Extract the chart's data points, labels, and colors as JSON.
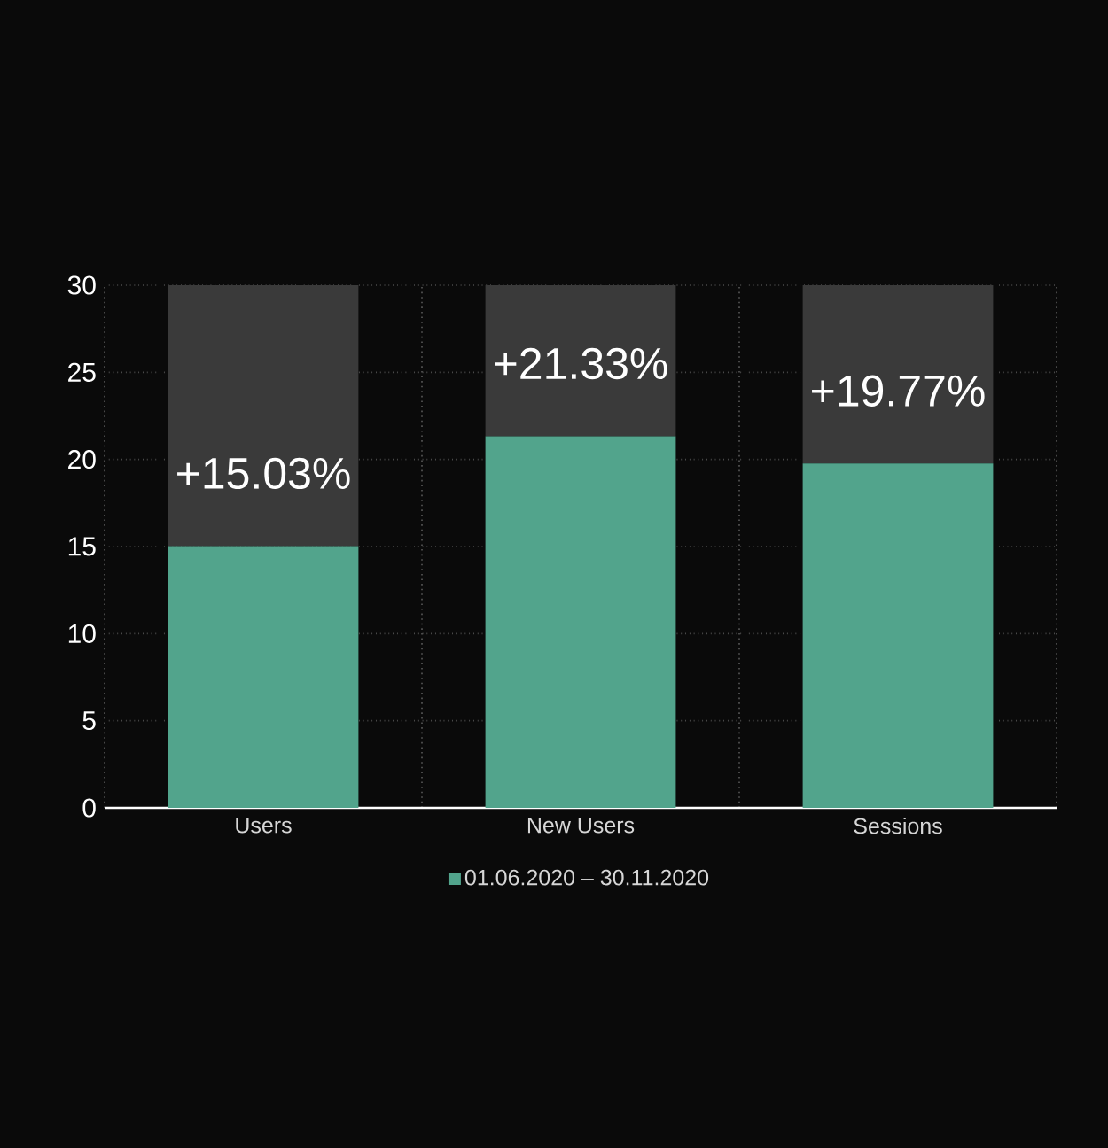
{
  "chart_data": {
    "type": "bar",
    "stacked": true,
    "categories": [
      "Users",
      "New Users",
      "Sessions"
    ],
    "series": [
      {
        "name": "01.06.2020 – 30.11.2020",
        "color": "#52a48c",
        "values": [
          15.03,
          21.33,
          19.77
        ],
        "value_labels": [
          "+15.03%",
          "+21.33%",
          "+19.77%"
        ]
      },
      {
        "color": "#3a3a3a",
        "values": [
          14.97,
          8.67,
          10.23
        ]
      }
    ],
    "ylim": [
      0,
      30
    ],
    "yticks": [
      0,
      5,
      10,
      15,
      20,
      25,
      30
    ],
    "grid": true,
    "legend": "bottom"
  }
}
